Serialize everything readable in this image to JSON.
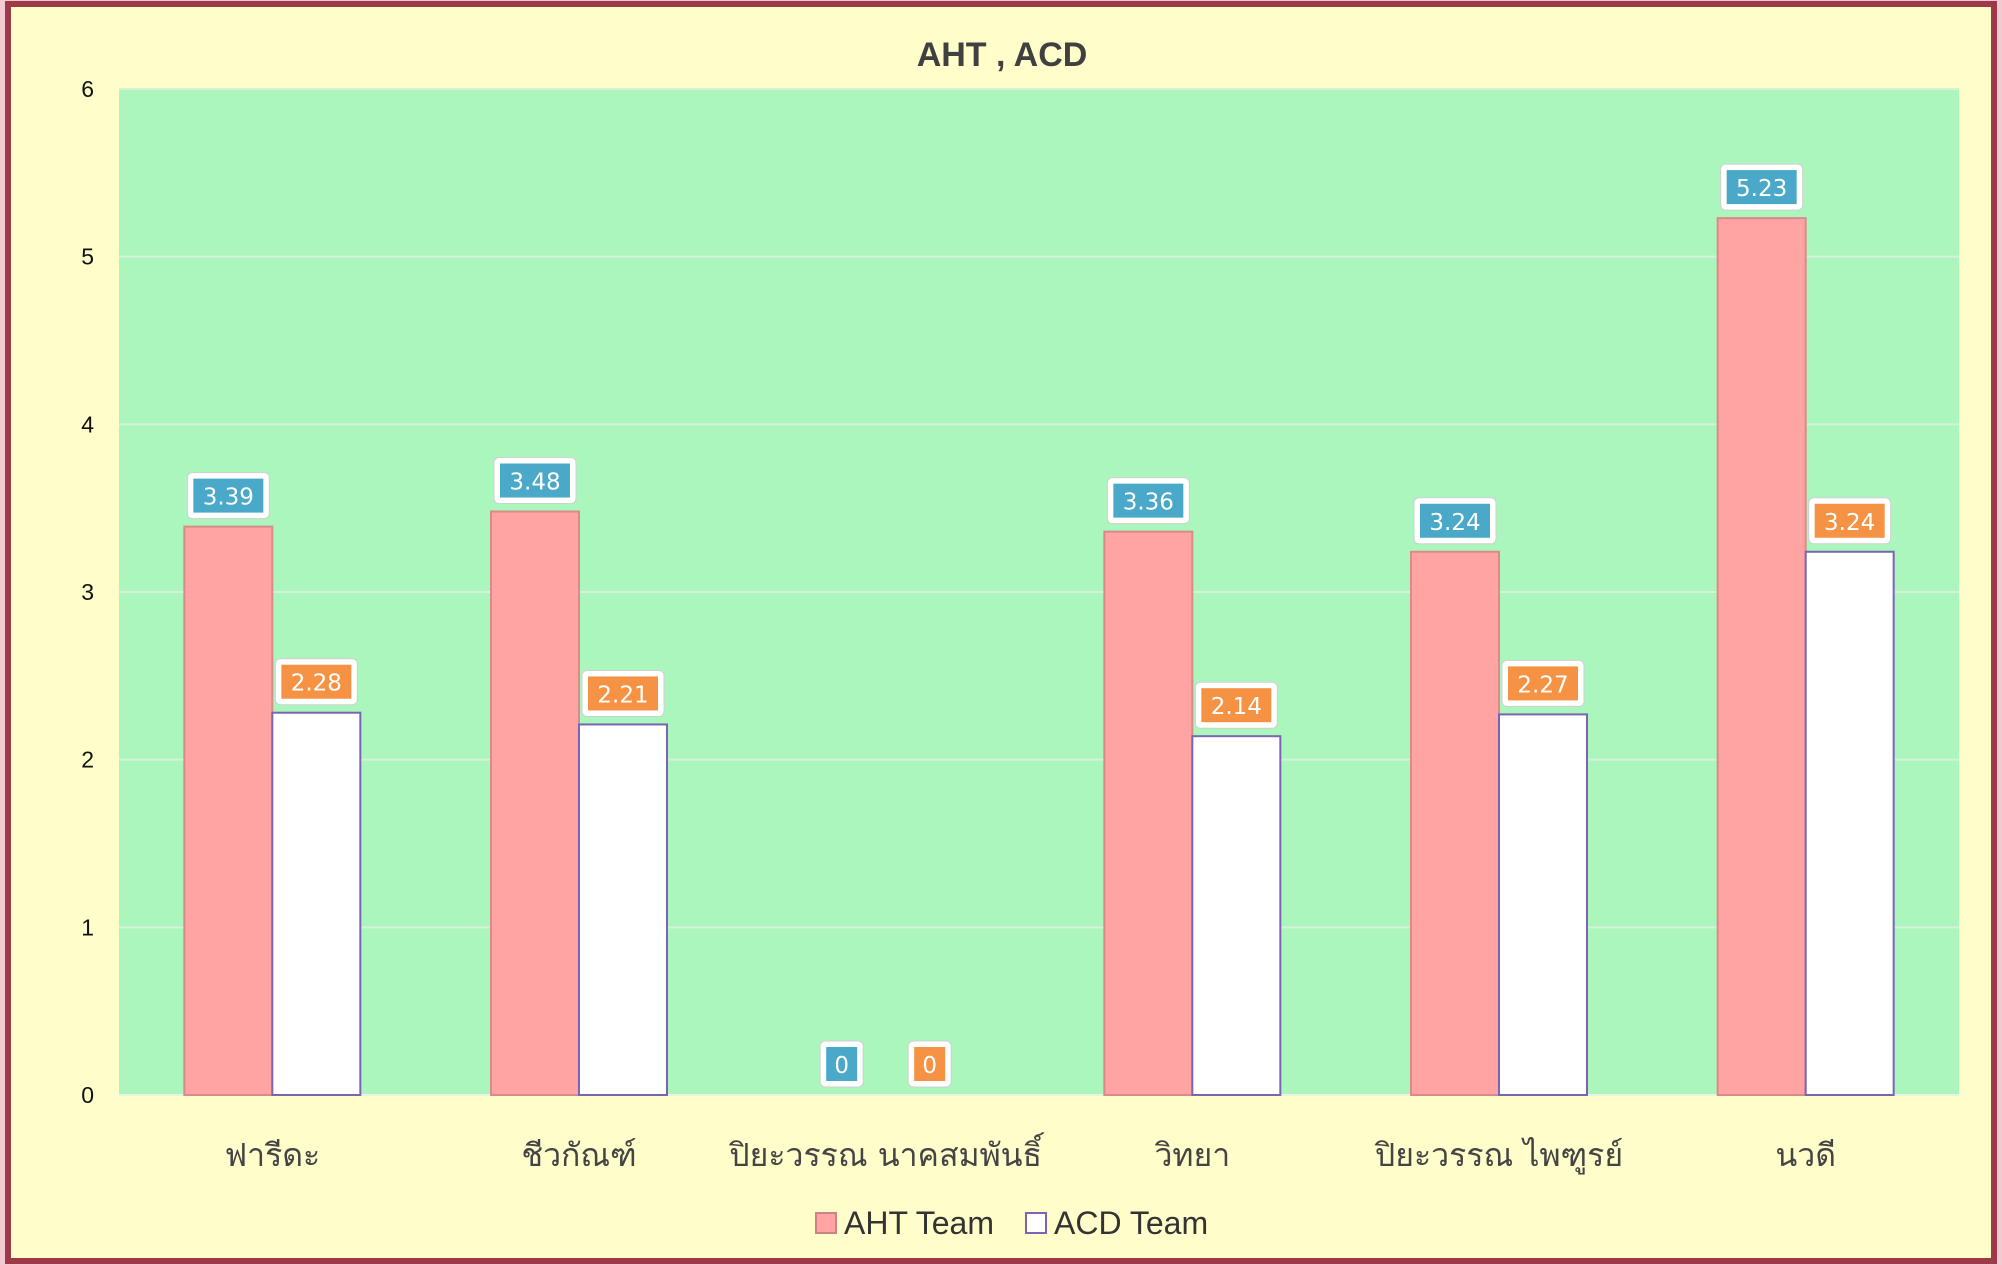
{
  "chart_data": {
    "type": "bar",
    "title": "AHT , ACD",
    "categories": [
      "ฟารีดะ",
      "ชีวกัณฑ์",
      "ปิยะวรรณ นาคสมพันธิ์",
      "วิทยา",
      "ปิยะวรรณ ไพฑูรย์",
      "นวดี"
    ],
    "series": [
      {
        "name": "AHT Team",
        "values": [
          3.39,
          3.48,
          0,
          3.36,
          3.24,
          5.23
        ],
        "fill": "#ffa3a3",
        "label_color": "#4aa8c8"
      },
      {
        "name": "ACD Team",
        "values": [
          2.28,
          2.21,
          0,
          2.14,
          2.27,
          3.24
        ],
        "fill": "#ffffff",
        "label_color": "#f59244"
      }
    ],
    "ylim": [
      0,
      6
    ],
    "yticks": [
      "0",
      "1",
      "2",
      "3",
      "4",
      "5",
      "6"
    ],
    "grid": true,
    "legend_position": "bottom",
    "colors": {
      "frame_border": "#9e3a47",
      "background": "#fffdca",
      "plot_area": "#aaf6bd",
      "gridline": "#d6f0d9",
      "title_text": "#404040"
    }
  }
}
